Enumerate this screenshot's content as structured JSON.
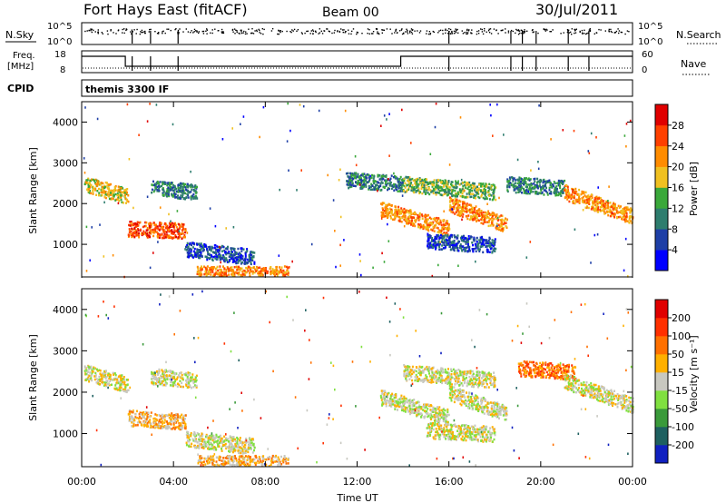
{
  "header": {
    "station": "Fort Hays East (fitACF)",
    "beam": "Beam 00",
    "date": "30/Jul/2011"
  },
  "top_panels": {
    "nsky_label": "N.Sky",
    "nsky_ticks": [
      "10^5",
      "10^0"
    ],
    "nsearch_label": "N.Search",
    "nsearch_ticks": [
      "10^5",
      "10^0"
    ],
    "freq_label_1": "Freq.",
    "freq_label_2": "[MHz]",
    "freq_ticks": [
      "18",
      "8"
    ],
    "nave_label": "Nave",
    "nave_ticks": [
      "60",
      "0"
    ],
    "cpid_label": "CPID",
    "cpid_value": "themis 3300 IF"
  },
  "chart_data": [
    {
      "type": "heatmap",
      "name": "power",
      "ylabel": "Slant Range [km]",
      "yticks": [
        "1000",
        "2000",
        "3000",
        "4000"
      ],
      "ylim": [
        200,
        4500
      ],
      "xlim": [
        0,
        24
      ],
      "colorbar_label": "Power [dB]",
      "colorbar_ticks": [
        "4",
        "8",
        "12",
        "16",
        "20",
        "24",
        "28"
      ],
      "colors": [
        "#0000ff",
        "#1e3fa6",
        "#2e7d6e",
        "#3aa83a",
        "#f0c020",
        "#ff8c00",
        "#ff4000",
        "#e00000"
      ],
      "bands": [
        {
          "x": [
            0.1,
            2.0
          ],
          "y": [
            2500,
            2200
          ],
          "level": 4
        },
        {
          "x": [
            2.0,
            4.5
          ],
          "y": [
            1400,
            1350
          ],
          "level": 6
        },
        {
          "x": [
            3.0,
            5.0
          ],
          "y": [
            2400,
            2300
          ],
          "level": 2
        },
        {
          "x": [
            4.5,
            7.5
          ],
          "y": [
            900,
            700
          ],
          "level": 1
        },
        {
          "x": [
            5.0,
            9.0
          ],
          "y": [
            300,
            300
          ],
          "level": 5
        },
        {
          "x": [
            11.5,
            14.0
          ],
          "y": [
            2600,
            2500
          ],
          "level": 2
        },
        {
          "x": [
            13.0,
            16.0
          ],
          "y": [
            1900,
            1400
          ],
          "level": 5
        },
        {
          "x": [
            14.0,
            18.0
          ],
          "y": [
            2500,
            2300
          ],
          "level": 3
        },
        {
          "x": [
            15.0,
            18.0
          ],
          "y": [
            1100,
            1000
          ],
          "level": 1
        },
        {
          "x": [
            16.0,
            18.5
          ],
          "y": [
            2000,
            1500
          ],
          "level": 5
        },
        {
          "x": [
            18.5,
            21.0
          ],
          "y": [
            2500,
            2400
          ],
          "level": 2
        },
        {
          "x": [
            21.0,
            24.0
          ],
          "y": [
            2300,
            1700
          ],
          "level": 5
        }
      ]
    },
    {
      "type": "heatmap",
      "name": "velocity",
      "ylabel": "Slant Range [km]",
      "yticks": [
        "1000",
        "2000",
        "3000",
        "4000"
      ],
      "ylim": [
        200,
        4500
      ],
      "xlim": [
        0,
        24
      ],
      "xticks": [
        "00:00",
        "04:00",
        "08:00",
        "12:00",
        "16:00",
        "20:00",
        "00:00"
      ],
      "xlabel": "Time UT",
      "colorbar_label": "Velocity [m s⁻¹]",
      "colorbar_ticks": [
        "200",
        "100",
        "50",
        "15",
        "-15",
        "-50",
        "-100",
        "-200"
      ],
      "colors": [
        "#1020c0",
        "#1e6060",
        "#3a9a3a",
        "#80e040",
        "#c8c8c0",
        "#ffb000",
        "#ff7000",
        "#ff3000",
        "#e00000"
      ],
      "bands": [
        {
          "x": [
            0.1,
            2.0
          ],
          "y": [
            2500,
            2200
          ],
          "level": 4
        },
        {
          "x": [
            2.0,
            4.5
          ],
          "y": [
            1400,
            1300
          ],
          "level": 5
        },
        {
          "x": [
            3.0,
            5.0
          ],
          "y": [
            2400,
            2300
          ],
          "level": 4
        },
        {
          "x": [
            4.5,
            7.5
          ],
          "y": [
            900,
            700
          ],
          "level": 4
        },
        {
          "x": [
            5.0,
            9.0
          ],
          "y": [
            300,
            300
          ],
          "level": 5
        },
        {
          "x": [
            13.0,
            16.0
          ],
          "y": [
            1900,
            1400
          ],
          "level": 4
        },
        {
          "x": [
            14.0,
            18.0
          ],
          "y": [
            2500,
            2300
          ],
          "level": 4
        },
        {
          "x": [
            15.0,
            18.0
          ],
          "y": [
            1100,
            1000
          ],
          "level": 4
        },
        {
          "x": [
            16.0,
            18.5
          ],
          "y": [
            2000,
            1500
          ],
          "level": 4
        },
        {
          "x": [
            19.0,
            21.5
          ],
          "y": [
            2600,
            2500
          ],
          "level": 6
        },
        {
          "x": [
            21.0,
            24.0
          ],
          "y": [
            2300,
            1700
          ],
          "level": 4
        }
      ]
    }
  ],
  "freq_steps": [
    {
      "x": [
        0.0,
        1.9
      ],
      "level": 1
    },
    {
      "x": [
        1.9,
        13.9
      ],
      "level": 0
    },
    {
      "x": [
        13.9,
        24.0
      ],
      "level": 1
    }
  ],
  "event_times": [
    2.2,
    3.0,
    4.2,
    16.0,
    18.7,
    19.2,
    19.8,
    21.2,
    22.1
  ]
}
